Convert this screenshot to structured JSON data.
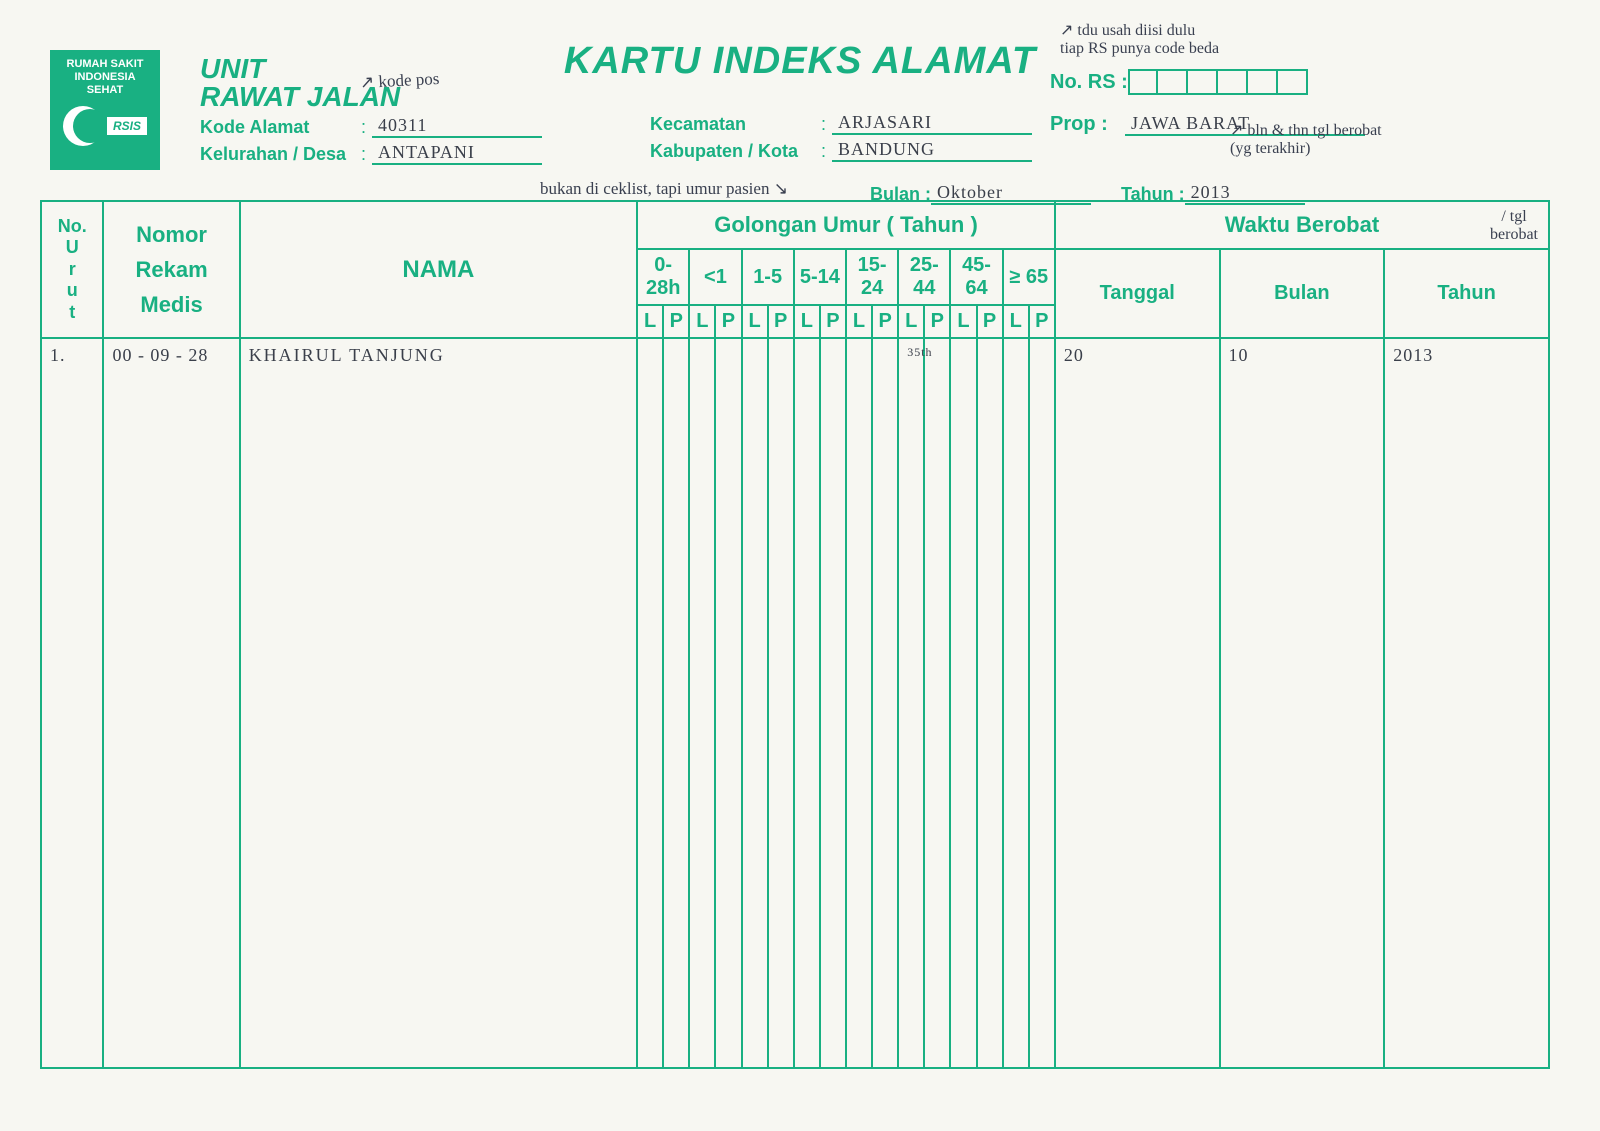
{
  "colors": {
    "form": "#19b082",
    "handwriting": "#3a4050",
    "paper": "#f7f7f2"
  },
  "hospital": {
    "line1": "RUMAH SAKIT",
    "line2": "INDONESIA SEHAT",
    "abbrev": "RSIS"
  },
  "title": "KARTU INDEKS ALAMAT",
  "unit": {
    "line1": "UNIT",
    "line2": "RAWAT JALAN"
  },
  "fields": {
    "kode_alamat_label": "Kode Alamat",
    "kode_alamat_value": "40311",
    "kelurahan_label": "Kelurahan / Desa",
    "kelurahan_value": "ANTAPANI",
    "kecamatan_label": "Kecamatan",
    "kecamatan_value": "ARJASARI",
    "kabupaten_label": "Kabupaten / Kota",
    "kabupaten_value": "BANDUNG",
    "no_rs_label": "No. RS :",
    "prop_label": "Prop :",
    "prop_value": "JAWA BARAT",
    "bulan_label": "Bulan :",
    "bulan_value": "Oktober",
    "tahun_label": "Tahun :",
    "tahun_value": "2013"
  },
  "annotations": {
    "kode_pos": "kode pos",
    "bukan_ceklist": "bukan di ceklist, tapi umur pasien",
    "tdu": "tdu usah diisi dulu\ntiap RS punya code beda",
    "bln_thn": "bln & thn tgl berobat\n(yg terakhir)",
    "tgl_berobat": "/ tgl\nberobat"
  },
  "table": {
    "headers": {
      "no_urut": "No.\nU\nr\nu\nt",
      "nomor_rm": "Nomor\nRekam\nMedis",
      "nama": "NAMA",
      "golongan": "Golongan Umur ( Tahun )",
      "waktu": "Waktu Berobat",
      "tanggal": "Tanggal",
      "bulan": "Bulan",
      "tahun": "Tahun",
      "age_groups": [
        "0-28h",
        "<1",
        "1-5",
        "5-14",
        "15-24",
        "25-44",
        "45-64",
        "≥ 65"
      ],
      "lp": {
        "L": "L",
        "P": "P"
      }
    },
    "row": {
      "no": "1.",
      "rm": "00 - 09 - 28",
      "nama": "KHAIRUL TANJUNG",
      "age_mark": "35th",
      "age_mark_col": 10,
      "tanggal": "20",
      "bulan": "10",
      "tahun": "2013"
    }
  }
}
